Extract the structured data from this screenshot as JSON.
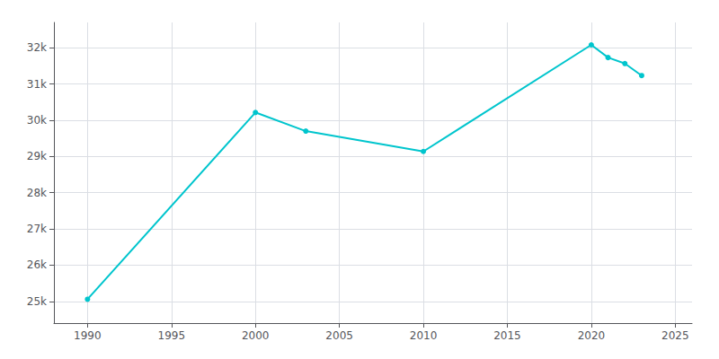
{
  "chart_data": {
    "type": "line",
    "x": [
      1990,
      2000,
      2003,
      2010,
      2020,
      2021,
      2022,
      2023
    ],
    "values": [
      25058,
      30215,
      29700,
      29139,
      32081,
      31730,
      31565,
      31233
    ],
    "color": "#00C5CD",
    "marker": "circle",
    "xlim": [
      1988,
      2026
    ],
    "xticks": [
      1990,
      1995,
      2000,
      2005,
      2010,
      2015,
      2020,
      2025
    ],
    "ylim": [
      24400,
      32700
    ],
    "yticks": [
      {
        "value": 25000,
        "label": "25k"
      },
      {
        "value": 26000,
        "label": "26k"
      },
      {
        "value": 27000,
        "label": "27k"
      },
      {
        "value": 28000,
        "label": "28k"
      },
      {
        "value": 29000,
        "label": "29k"
      },
      {
        "value": 30000,
        "label": "30k"
      },
      {
        "value": 31000,
        "label": "31k"
      },
      {
        "value": 32000,
        "label": "32k"
      }
    ],
    "grid": true
  }
}
